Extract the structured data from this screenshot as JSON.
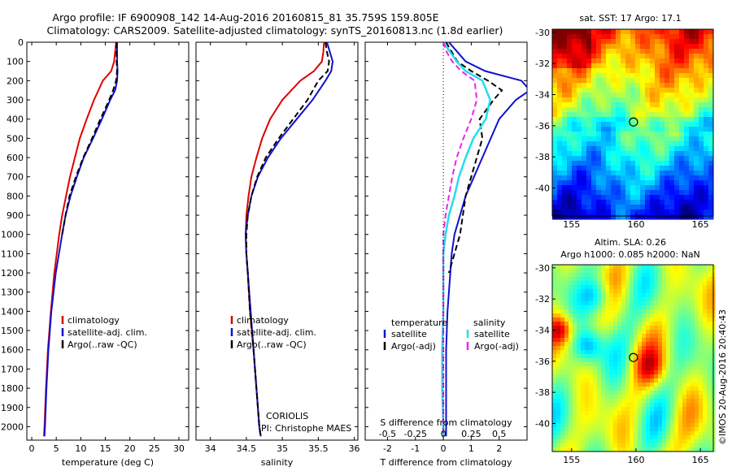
{
  "title_line1": "Argo profile: IF 6900908_142 14-Aug-2016 20160815_81 35.759S 159.805E",
  "title_line2": "Climatology: CARS2009. Satellite-adjusted climatology: synTS_20160813.nc (1.8d earlier)",
  "colors": {
    "climatology": "#dd0000",
    "satellite": "#1010d0",
    "argo": "#000000",
    "sat_salinity": "#22ddee",
    "argo_salinity": "#ee22ee"
  },
  "depth_ticks": [
    "0",
    "100",
    "200",
    "300",
    "400",
    "500",
    "600",
    "700",
    "800",
    "900",
    "1000",
    "1100",
    "1200",
    "1300",
    "1400",
    "1500",
    "1600",
    "1700",
    "1800",
    "1900",
    "2000"
  ],
  "chart_data": [
    {
      "type": "line",
      "xlabel": "temperature (deg C)",
      "xticks": [
        "0",
        "5",
        "10",
        "15",
        "20",
        "25",
        "30"
      ],
      "xlim": [
        -1,
        32
      ],
      "ylim": [
        2070,
        0
      ],
      "legend": [
        "climatology",
        "satellite-adj. clim.",
        "Argo(..raw -QC)"
      ],
      "series": [
        {
          "name": "climatology",
          "depth": [
            0,
            50,
            100,
            150,
            200,
            300,
            400,
            500,
            600,
            700,
            800,
            900,
            1000,
            1200,
            1400,
            1600,
            1800,
            2000,
            2050
          ],
          "values": [
            17.2,
            17.0,
            16.8,
            16.2,
            14.5,
            12.7,
            11.2,
            9.8,
            8.8,
            7.8,
            7.0,
            6.2,
            5.6,
            4.6,
            3.9,
            3.3,
            2.9,
            2.6,
            2.5
          ]
        },
        {
          "name": "satellite-adj. clim.",
          "depth": [
            0,
            50,
            100,
            150,
            200,
            250,
            300,
            400,
            500,
            600,
            700,
            800,
            900,
            1000,
            1200,
            1400,
            1600,
            1800,
            2000,
            2050
          ],
          "values": [
            17.4,
            17.4,
            17.4,
            17.5,
            17.4,
            17.0,
            16.0,
            14.3,
            12.5,
            10.6,
            9.2,
            7.9,
            6.9,
            6.2,
            4.9,
            4.0,
            3.4,
            3.0,
            2.7,
            2.6
          ]
        },
        {
          "name": "Argo(..raw -QC)",
          "depth": [
            0,
            50,
            100,
            150,
            200,
            250,
            300,
            400,
            500,
            600,
            700,
            800,
            900,
            1000
          ],
          "values": [
            17.3,
            17.3,
            17.3,
            17.4,
            17.2,
            16.6,
            15.8,
            14.0,
            12.3,
            10.5,
            9.0,
            7.7,
            6.9,
            6.2
          ]
        }
      ]
    },
    {
      "type": "line",
      "xlabel": "salinity",
      "xticks": [
        "34",
        "34.5",
        "35",
        "35.5",
        "36"
      ],
      "xlim": [
        33.8,
        36.05
      ],
      "ylim": [
        2070,
        0
      ],
      "legend": [
        "climatology",
        "satellite-adj. clim.",
        "Argo(..raw -QC)"
      ],
      "annotations": [
        "CORIOLIS",
        "PI: Christophe MAES"
      ],
      "series": [
        {
          "name": "climatology",
          "depth": [
            0,
            50,
            100,
            150,
            200,
            300,
            400,
            500,
            600,
            700,
            800,
            900,
            1000,
            1100,
            1200,
            1400,
            1600,
            1800,
            2000,
            2050
          ],
          "values": [
            35.58,
            35.57,
            35.55,
            35.44,
            35.25,
            35.0,
            34.83,
            34.72,
            34.64,
            34.57,
            34.53,
            34.5,
            34.49,
            34.5,
            34.52,
            34.55,
            34.6,
            34.64,
            34.68,
            34.7
          ]
        },
        {
          "name": "satellite-adj. clim.",
          "depth": [
            0,
            50,
            100,
            150,
            200,
            300,
            400,
            500,
            600,
            700,
            800,
            900,
            1000,
            1100,
            1200,
            1400,
            1600,
            1800,
            2000,
            2050
          ],
          "values": [
            35.62,
            35.66,
            35.7,
            35.68,
            35.6,
            35.42,
            35.2,
            34.98,
            34.8,
            34.66,
            34.57,
            34.52,
            34.49,
            34.5,
            34.52,
            34.56,
            34.6,
            34.64,
            34.68,
            34.7
          ]
        },
        {
          "name": "Argo(..raw -QC)",
          "depth": [
            0,
            50,
            100,
            150,
            200,
            300,
            400,
            500,
            600,
            700,
            800,
            900,
            1000,
            1100,
            1200,
            1400,
            1600,
            1800,
            2000,
            2050
          ],
          "values": [
            35.6,
            35.62,
            35.65,
            35.63,
            35.5,
            35.35,
            35.15,
            34.95,
            34.77,
            34.65,
            34.57,
            34.52,
            34.5,
            34.5,
            34.52,
            34.55,
            34.6,
            34.64,
            34.68,
            34.7
          ]
        }
      ]
    },
    {
      "type": "line",
      "xlabel": "T difference from climatology",
      "xticks": [
        "-2",
        "-1",
        "0",
        "1",
        "2"
      ],
      "xlabel2": "S difference from climatology",
      "xticks2": [
        "-0.5",
        "-0.25",
        "0",
        "0.25",
        "0.5"
      ],
      "xlim": [
        -2.8,
        3.0
      ],
      "ylim": [
        2070,
        0
      ],
      "legend_temperature": {
        "heading": "temperature",
        "items": [
          "satellite",
          "Argo(-adj)"
        ]
      },
      "legend_salinity": {
        "heading": "salinity",
        "items": [
          "satellite",
          "Argo(-adj)"
        ]
      },
      "series": [
        {
          "name": "temperature satellite",
          "depth": [
            0,
            50,
            100,
            150,
            200,
            250,
            300,
            400,
            500,
            600,
            700,
            800,
            900,
            1000,
            1100,
            1200,
            1400,
            1600,
            1800,
            2000,
            2050
          ],
          "values": [
            0.2,
            0.5,
            0.8,
            1.5,
            2.8,
            3.1,
            2.6,
            2.0,
            1.7,
            1.4,
            1.1,
            0.8,
            0.6,
            0.4,
            0.3,
            0.25,
            0.15,
            0.1,
            0.1,
            0.1,
            0.1
          ]
        },
        {
          "name": "temperature Argo(-adj)",
          "depth": [
            0,
            50,
            100,
            150,
            200,
            250,
            300,
            400,
            500,
            600,
            700,
            800,
            900,
            1000,
            1100,
            1200
          ],
          "values": [
            0.1,
            0.3,
            0.5,
            1.0,
            1.6,
            2.1,
            1.8,
            1.3,
            1.4,
            1.2,
            1.0,
            0.8,
            0.7,
            0.6,
            0.4,
            0.2
          ]
        },
        {
          "name": "salinity satellite",
          "depth": [
            0,
            50,
            100,
            150,
            200,
            300,
            400,
            500,
            600,
            700,
            800,
            900,
            1000,
            1100,
            1200,
            1400,
            1600,
            1800,
            2000,
            2050
          ],
          "values": [
            0.0,
            0.06,
            0.12,
            0.2,
            0.35,
            0.42,
            0.38,
            0.27,
            0.2,
            0.14,
            0.1,
            0.05,
            0.02,
            0.0,
            0.0,
            0.0,
            -0.01,
            -0.01,
            0.0,
            0.0
          ]
        },
        {
          "name": "salinity Argo(-adj)",
          "depth": [
            0,
            50,
            100,
            150,
            200,
            300,
            400,
            500,
            600,
            700,
            800,
            900,
            1000,
            1100,
            1200,
            1400,
            1600,
            1800,
            2000,
            2050
          ],
          "values": [
            0.0,
            0.03,
            0.08,
            0.16,
            0.28,
            0.3,
            0.25,
            0.18,
            0.12,
            0.08,
            0.05,
            0.02,
            0.0,
            0.0,
            0.0,
            0.0,
            0.0,
            0.0,
            0.0,
            0.0
          ]
        }
      ]
    }
  ],
  "map_top": {
    "title": "sat. SST: 17 Argo: 17.1",
    "yticks": [
      "-30",
      "-32",
      "-34",
      "-36",
      "-38",
      "-40"
    ],
    "xticks": [
      "155",
      "160",
      "165"
    ],
    "argo_lat": -35.759,
    "argo_lon": 159.805
  },
  "map_bottom": {
    "title_line1": "Altim. SLA: 0.26",
    "title_line2": "Argo h1000: 0.085 h2000: NaN",
    "yticks": [
      "-30",
      "-32",
      "-34",
      "-36",
      "-38",
      "-40"
    ],
    "xticks": [
      "155",
      "160",
      "165"
    ],
    "argo_lat": -35.759,
    "argo_lon": 159.805
  },
  "credit": "©IMOS 20-Aug-2016 20:40:43"
}
